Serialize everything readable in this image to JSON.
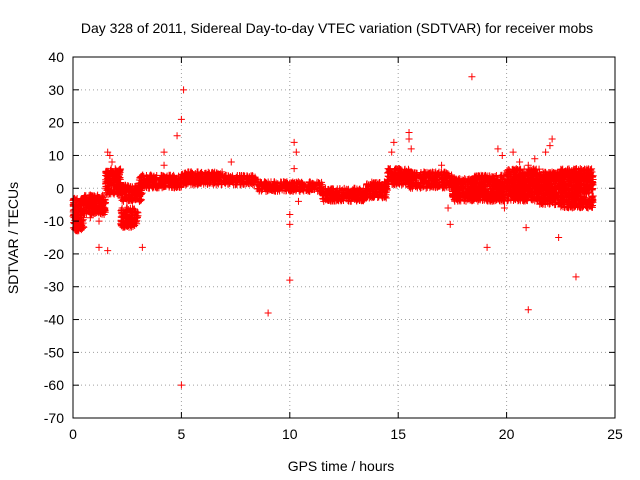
{
  "colors": {
    "series": "#ff0000",
    "axis": "#000000",
    "grid": "#a0a0a0",
    "background": "#ffffff"
  },
  "chart_data": {
    "type": "scatter",
    "title": "Day 328 of 2011, Sidereal Day-to-day VTEC variation (SDTVAR) for receiver mobs",
    "xlabel": "GPS time / hours",
    "ylabel": "SDTVAR / TECUs",
    "xlim": [
      0,
      25
    ],
    "ylim": [
      -70,
      40
    ],
    "xticks": [
      0,
      5,
      10,
      15,
      20,
      25
    ],
    "yticks": [
      -70,
      -60,
      -50,
      -40,
      -30,
      -20,
      -10,
      0,
      10,
      20,
      30,
      40
    ],
    "grid": true,
    "marker": "+",
    "series": [
      {
        "name": "SDTVAR",
        "dense_bands": [
          {
            "x": [
              0.0,
              0.5
            ],
            "y": [
              -13,
              -3
            ]
          },
          {
            "x": [
              0.5,
              1.5
            ],
            "y": [
              -8,
              -2
            ]
          },
          {
            "x": [
              1.5,
              2.2
            ],
            "y": [
              -2,
              6
            ]
          },
          {
            "x": [
              2.2,
              3.0
            ],
            "y": [
              -12,
              -6
            ]
          },
          {
            "x": [
              2.2,
              3.2
            ],
            "y": [
              -4,
              1
            ]
          },
          {
            "x": [
              3.0,
              5.0
            ],
            "y": [
              0,
              4
            ]
          },
          {
            "x": [
              5.0,
              7.0
            ],
            "y": [
              1,
              5
            ]
          },
          {
            "x": [
              7.0,
              8.5
            ],
            "y": [
              1,
              4
            ]
          },
          {
            "x": [
              8.5,
              10.0
            ],
            "y": [
              -1,
              2
            ]
          },
          {
            "x": [
              10.0,
              11.5
            ],
            "y": [
              -1,
              2
            ]
          },
          {
            "x": [
              11.5,
              13.5
            ],
            "y": [
              -4,
              0
            ]
          },
          {
            "x": [
              13.5,
              14.5
            ],
            "y": [
              -3,
              2
            ]
          },
          {
            "x": [
              14.5,
              15.5
            ],
            "y": [
              1,
              6
            ]
          },
          {
            "x": [
              15.5,
              17.5
            ],
            "y": [
              0,
              5
            ]
          },
          {
            "x": [
              17.5,
              18.5
            ],
            "y": [
              -4,
              3
            ]
          },
          {
            "x": [
              18.5,
              20.0
            ],
            "y": [
              -4,
              4
            ]
          },
          {
            "x": [
              20.0,
              21.5
            ],
            "y": [
              -4,
              6
            ]
          },
          {
            "x": [
              21.5,
              22.5
            ],
            "y": [
              -5,
              5
            ]
          },
          {
            "x": [
              22.5,
              24.0
            ],
            "y": [
              -6,
              6
            ]
          }
        ],
        "points": [
          [
            0.2,
            -13
          ],
          [
            0.4,
            -12
          ],
          [
            0.8,
            -9
          ],
          [
            1.2,
            -10
          ],
          [
            1.2,
            -18
          ],
          [
            1.6,
            -19
          ],
          [
            1.6,
            11
          ],
          [
            1.7,
            10
          ],
          [
            1.8,
            8
          ],
          [
            3.2,
            -18
          ],
          [
            4.2,
            11
          ],
          [
            4.2,
            7
          ],
          [
            4.8,
            16
          ],
          [
            5.0,
            21
          ],
          [
            5.1,
            30
          ],
          [
            5.0,
            -60
          ],
          [
            7.3,
            8
          ],
          [
            9.0,
            -38
          ],
          [
            10.0,
            -28
          ],
          [
            10.0,
            -8
          ],
          [
            10.0,
            -11
          ],
          [
            10.2,
            14
          ],
          [
            10.3,
            11
          ],
          [
            10.2,
            6
          ],
          [
            10.4,
            -4
          ],
          [
            13.0,
            0
          ],
          [
            14.7,
            11
          ],
          [
            14.8,
            14
          ],
          [
            14.9,
            6
          ],
          [
            15.5,
            17
          ],
          [
            15.5,
            15
          ],
          [
            15.6,
            12
          ],
          [
            17.0,
            7
          ],
          [
            17.3,
            -6
          ],
          [
            17.4,
            -11
          ],
          [
            18.4,
            34
          ],
          [
            19.1,
            -18
          ],
          [
            19.6,
            12
          ],
          [
            19.8,
            10
          ],
          [
            19.9,
            -6
          ],
          [
            20.3,
            11
          ],
          [
            20.6,
            8
          ],
          [
            20.9,
            -12
          ],
          [
            21.0,
            -37
          ],
          [
            21.0,
            7
          ],
          [
            21.3,
            9
          ],
          [
            21.8,
            11
          ],
          [
            22.0,
            13
          ],
          [
            22.1,
            15
          ],
          [
            22.4,
            -15
          ],
          [
            23.2,
            -27
          ],
          [
            23.4,
            6
          ]
        ]
      }
    ]
  }
}
